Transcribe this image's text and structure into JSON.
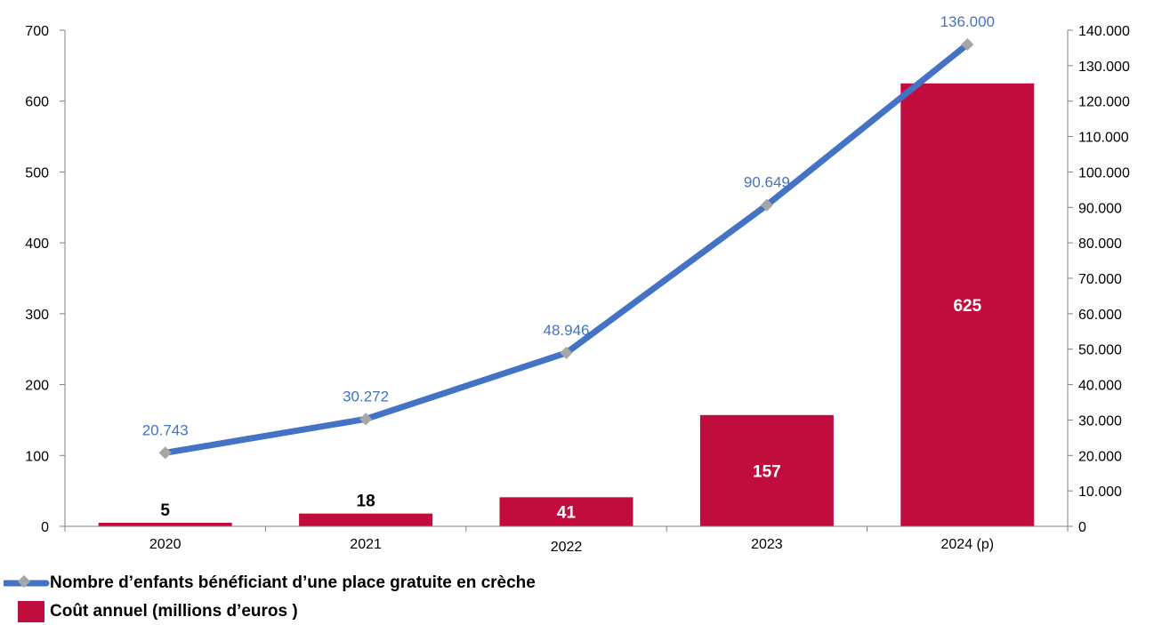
{
  "chart_data": {
    "type": "bar+line",
    "categories": [
      "2020",
      "2021",
      "2022",
      "2023",
      "2024 (p)"
    ],
    "bar_series": {
      "name": "Coût annuel (millions d’euros )",
      "values": [
        5,
        18,
        41,
        157,
        625
      ],
      "value_labels": [
        "5",
        "18",
        "41",
        "157",
        "625"
      ],
      "color": "#C00D3E",
      "axis": "left"
    },
    "line_series": {
      "name": "Nombre d’enfants bénéficiant d’une place gratuite en crèche",
      "values": [
        20743,
        30272,
        48946,
        90649,
        136000
      ],
      "value_labels": [
        "20.743",
        "30.272",
        "48.946",
        "90.649",
        "136.000"
      ],
      "color": "#4472C4",
      "marker_color": "#A6A6A6",
      "axis": "right"
    },
    "y_left": {
      "min": 0,
      "max": 700,
      "step": 100,
      "tick_labels": [
        "0",
        "100",
        "200",
        "300",
        "400",
        "500",
        "600",
        "700"
      ]
    },
    "y_right": {
      "min": 0,
      "max": 140000,
      "step": 10000,
      "tick_labels": [
        "0",
        "10.000",
        "20.000",
        "30.000",
        "40.000",
        "50.000",
        "60.000",
        "70.000",
        "80.000",
        "90.000",
        "100.000",
        "110.000",
        "120.000",
        "130.000",
        "140.000"
      ]
    },
    "grid": false,
    "legend_position": "bottom-left"
  }
}
